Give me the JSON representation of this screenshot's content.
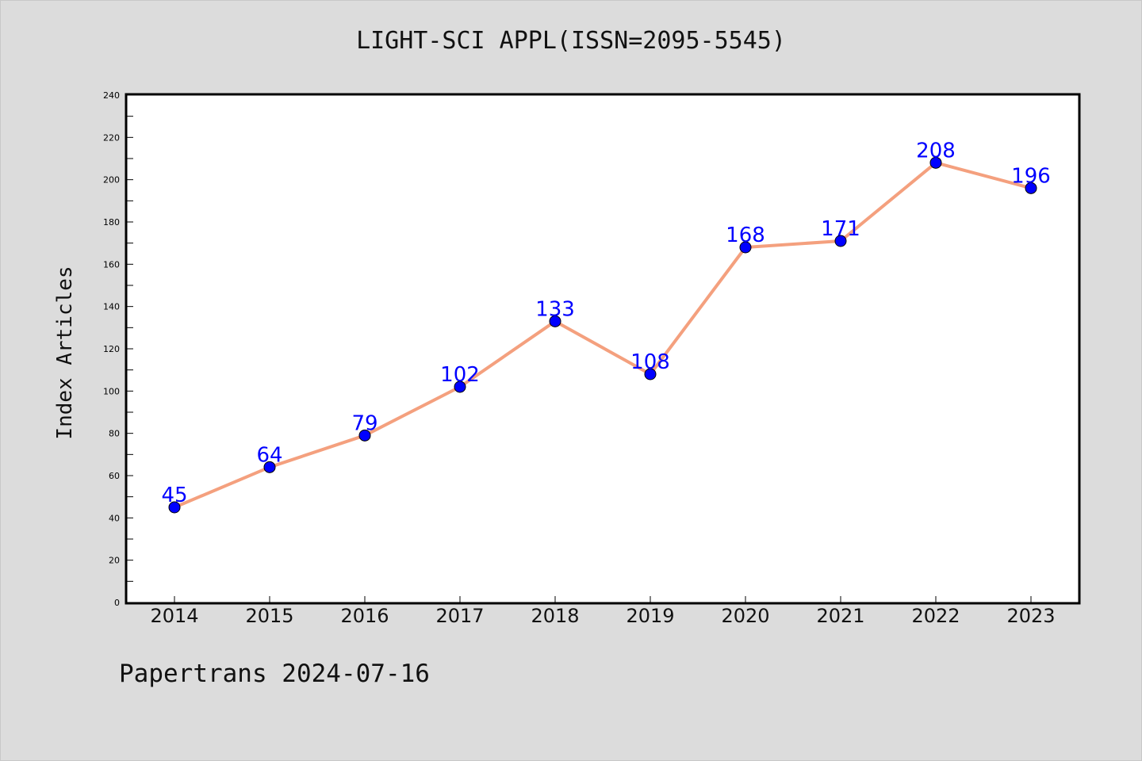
{
  "chart_data": {
    "type": "line",
    "title": "LIGHT-SCI APPL(ISSN=2095-5545)",
    "xlabel": "",
    "ylabel": "Index Articles",
    "categories": [
      "2014",
      "2015",
      "2016",
      "2017",
      "2018",
      "2019",
      "2020",
      "2021",
      "2022",
      "2023"
    ],
    "values": [
      45,
      64,
      79,
      102,
      133,
      108,
      168,
      171,
      208,
      196
    ],
    "ylim": [
      0,
      240
    ],
    "yticks": [
      0,
      20,
      40,
      60,
      80,
      100,
      120,
      140,
      160,
      180,
      200,
      220,
      240
    ],
    "grid": false,
    "legend": "none",
    "colors": {
      "line": "#f4a07e",
      "marker": "#0000ff",
      "label": "#0000ff",
      "background": "#dcdcdc",
      "plot_background": "#ffffff"
    }
  },
  "footer": {
    "text": "Papertrans 2024-07-16"
  }
}
